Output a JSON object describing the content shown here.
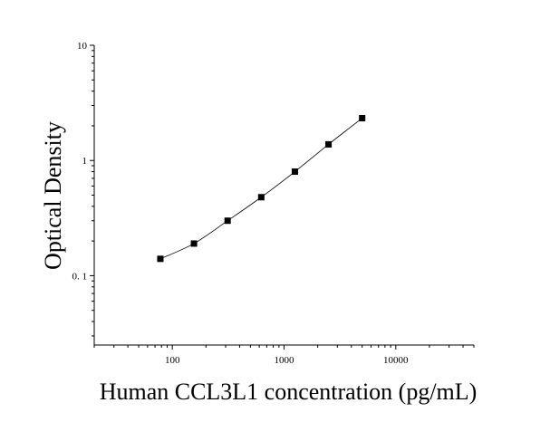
{
  "chart_data": {
    "type": "scatter",
    "title": "",
    "xlabel": "Human CCL3L1 concentration (pg/mL)",
    "ylabel": "Optical Density",
    "x_scale": "log",
    "y_scale": "log",
    "xlim": [
      20,
      50000
    ],
    "ylim": [
      0.025,
      10
    ],
    "x_ticks": [
      {
        "value": 100,
        "label": "100"
      },
      {
        "value": 1000,
        "label": "1000"
      },
      {
        "value": 10000,
        "label": "10000"
      }
    ],
    "y_ticks": [
      {
        "value": 0.1,
        "label": "0. 1"
      },
      {
        "value": 1,
        "label": "1"
      },
      {
        "value": 10,
        "label": "10"
      }
    ],
    "grid": false,
    "legend": "none",
    "marker_color": "#000000",
    "line_color": "#000000",
    "series": [
      {
        "points": [
          {
            "x": 78.125,
            "y": 0.14
          },
          {
            "x": 156.25,
            "y": 0.19
          },
          {
            "x": 312.5,
            "y": 0.3
          },
          {
            "x": 625,
            "y": 0.48
          },
          {
            "x": 1250,
            "y": 0.8
          },
          {
            "x": 2500,
            "y": 1.38
          },
          {
            "x": 5000,
            "y": 2.33
          }
        ]
      }
    ]
  }
}
